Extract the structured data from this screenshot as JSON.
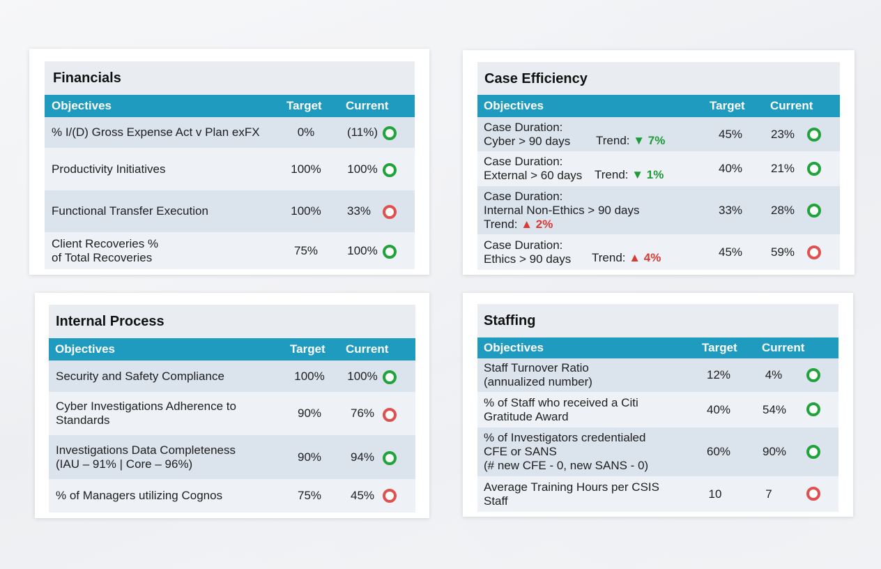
{
  "colors": {
    "header": "#1f9bc0",
    "green": "#1fa33a",
    "red": "#e0504f"
  },
  "columns": {
    "objectives": "Objectives",
    "target": "Target",
    "current": "Current"
  },
  "financials": {
    "title": "Financials",
    "rows": [
      {
        "objective": "% I/(D) Gross Expense Act v Plan exFX",
        "target": "0%",
        "current": "(11%)",
        "status": "green"
      },
      {
        "objective": "Productivity Initiatives",
        "target": "100%",
        "current": "100%",
        "status": "green"
      },
      {
        "objective": "Functional Transfer Execution",
        "target": "100%",
        "current": "33%",
        "status": "red"
      },
      {
        "objective_line1": "Client Recoveries %",
        "objective_line2": "of Total Recoveries",
        "target": "75%",
        "current": "100%",
        "status": "green"
      }
    ]
  },
  "case_efficiency": {
    "title": "Case Efficiency",
    "rows": [
      {
        "line1": "Case Duration:",
        "line2": "Cyber > 90 days",
        "trend_label": "Trend:",
        "trend_value": "▼ 7%",
        "trend_dir": "down",
        "target": "45%",
        "current": "23%",
        "status": "green"
      },
      {
        "line1": "Case Duration:",
        "line2": "External > 60 days",
        "trend_label": "Trend:",
        "trend_value": "▼ 1%",
        "trend_dir": "down",
        "target": "40%",
        "current": "21%",
        "status": "green"
      },
      {
        "line1": "Case Duration:",
        "line2": "Internal Non-Ethics > 90 days",
        "trend_label": "Trend:",
        "trend_value": "▲ 2%",
        "trend_dir": "up",
        "target": "33%",
        "current": "28%",
        "status": "green"
      },
      {
        "line1": "Case Duration:",
        "line2": "Ethics > 90 days",
        "trend_label": "Trend:",
        "trend_value": "▲ 4%",
        "trend_dir": "up",
        "target": "45%",
        "current": "59%",
        "status": "red"
      }
    ]
  },
  "internal_process": {
    "title": "Internal Process",
    "rows": [
      {
        "objective": "Security and Safety Compliance",
        "target": "100%",
        "current": "100%",
        "status": "green"
      },
      {
        "objective_line1": "Cyber Investigations Adherence to",
        "objective_line2": "Standards",
        "target": "90%",
        "current": "76%",
        "status": "red"
      },
      {
        "objective_line1": "Investigations Data Completeness",
        "objective_line2": "(IAU – 91% | Core – 96%)",
        "target": "90%",
        "current": "94%",
        "status": "green"
      },
      {
        "objective": "% of Managers utilizing Cognos",
        "target": "75%",
        "current": "45%",
        "status": "red"
      }
    ]
  },
  "staffing": {
    "title": "Staffing",
    "rows": [
      {
        "objective_line1": "Staff Turnover Ratio",
        "objective_line2": "(annualized number)",
        "target": "12%",
        "current": "4%",
        "status": "green"
      },
      {
        "objective_line1": "% of Staff who received a Citi",
        "objective_line2": "Gratitude Award",
        "target": "40%",
        "current": "54%",
        "status": "green"
      },
      {
        "objective_line1": "% of Investigators credentialed",
        "objective_line2": "CFE or SANS",
        "objective_line3": "(# new CFE - 0, new SANS - 0)",
        "target": "60%",
        "current": "90%",
        "status": "green"
      },
      {
        "objective_line1": "Average Training Hours per CSIS",
        "objective_line2": "Staff",
        "target": "10",
        "current": "7",
        "status": "red"
      }
    ]
  }
}
